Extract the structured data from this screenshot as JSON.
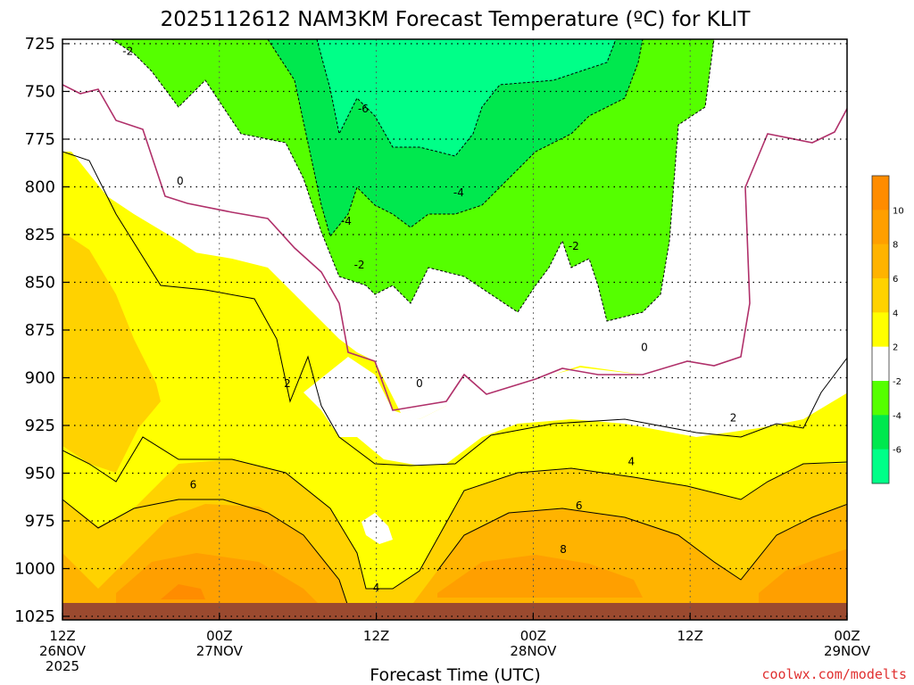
{
  "chart_data": {
    "type": "heatmap",
    "title": "2025112612 NAM3KM Forecast Temperature (ºC) for KLIT",
    "xlabel": "Forecast Time (UTC)",
    "ylabel": "",
    "credit": "coolwx.com/modelts",
    "y_scale": "linear-inverted",
    "y_units": "hPa",
    "ylim": [
      1025,
      725
    ],
    "y_ticks": [
      "725",
      "750",
      "775",
      "800",
      "825",
      "850",
      "875",
      "900",
      "925",
      "950",
      "975",
      "1000",
      "1025"
    ],
    "x_ticks": [
      {
        "line1": "12Z",
        "line2": "26NOV",
        "line3": "2025"
      },
      {
        "line1": "00Z",
        "line2": "27NOV",
        "line3": ""
      },
      {
        "line1": "12Z",
        "line2": "",
        "line3": ""
      },
      {
        "line1": "00Z",
        "line2": "28NOV",
        "line3": ""
      },
      {
        "line1": "12Z",
        "line2": "",
        "line3": ""
      },
      {
        "line1": "00Z",
        "line2": "29NOV",
        "line3": ""
      }
    ],
    "x_hours": [
      0,
      12,
      24,
      36,
      48,
      60
    ],
    "grid": true,
    "legend": {
      "placement": "right",
      "labels": [
        "10",
        "8",
        "6",
        "4",
        "2",
        "-2",
        "-4",
        "-6"
      ],
      "bands": [
        {
          "range": "10 to 12",
          "color": "#ff8c00"
        },
        {
          "range": "8 to 10",
          "color": "#ff9f00"
        },
        {
          "range": "6 to 8",
          "color": "#ffb300"
        },
        {
          "range": "4 to 6",
          "color": "#ffd200"
        },
        {
          "range": "2 to 4",
          "color": "#ffff00"
        },
        {
          "range": "-2 to 2",
          "color": "#ffffff"
        },
        {
          "range": "-4 to -2",
          "color": "#55ff00"
        },
        {
          "range": "-6 to -4",
          "color": "#00e84e"
        },
        {
          "range": "-8 to -6",
          "color": "#00ff88"
        }
      ]
    },
    "contour_labels": [
      {
        "text": "-2",
        "hour": 5.0,
        "p": 729
      },
      {
        "text": "-6",
        "hour": 23.0,
        "p": 759
      },
      {
        "text": "0",
        "hour": 9.0,
        "p": 797
      },
      {
        "text": "-4",
        "hour": 30.3,
        "p": 803
      },
      {
        "text": "-4",
        "hour": 21.7,
        "p": 818
      },
      {
        "text": "-2",
        "hour": 22.7,
        "p": 841
      },
      {
        "text": "-2",
        "hour": 39.1,
        "p": 831
      },
      {
        "text": "0",
        "hour": 27.3,
        "p": 903
      },
      {
        "text": "0",
        "hour": 44.5,
        "p": 884
      },
      {
        "text": "2",
        "hour": 17.2,
        "p": 903
      },
      {
        "text": "2",
        "hour": 51.3,
        "p": 921
      },
      {
        "text": "4",
        "hour": 43.5,
        "p": 944
      },
      {
        "text": "4",
        "hour": 24.0,
        "p": 1010
      },
      {
        "text": "6",
        "hour": 10.0,
        "p": 956
      },
      {
        "text": "6",
        "hour": 39.5,
        "p": 967
      },
      {
        "text": "8",
        "hour": 38.3,
        "p": 990
      }
    ],
    "ground": {
      "color": "#9b4a2f",
      "p_top": 1018
    }
  }
}
